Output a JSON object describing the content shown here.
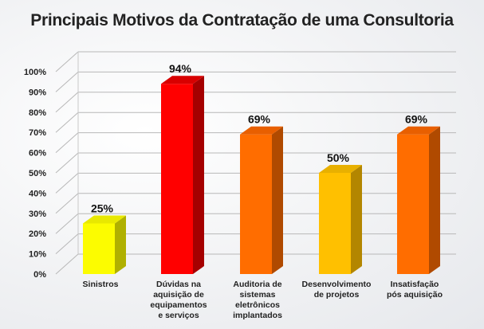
{
  "chart_data": {
    "type": "bar",
    "title": "Principais Motivos da Contratação de uma Consultoria",
    "categories": [
      [
        "Sinistros"
      ],
      [
        "Dúvidas na",
        "aquisição de",
        "equipamentos",
        "e serviços"
      ],
      [
        "Auditoria de",
        "sistemas",
        "eletrônicos",
        "implantados"
      ],
      [
        "Desenvolvimento",
        "de projetos"
      ],
      [
        "Insatisfação",
        "pós aquisição"
      ]
    ],
    "values": [
      25,
      94,
      69,
      50,
      69
    ],
    "data_labels": [
      "25%",
      "94%",
      "69%",
      "50%",
      "69%"
    ],
    "colors": [
      "#fcfc00",
      "#ff0000",
      "#ff6d00",
      "#ffc000",
      "#ff6d00"
    ],
    "side_colors": [
      "#b0b000",
      "#a50000",
      "#b04a00",
      "#b38600",
      "#b04a00"
    ],
    "top_colors": [
      "#e8e800",
      "#d80000",
      "#e85f00",
      "#e8b000",
      "#e85f00"
    ],
    "yticks": [
      "0%",
      "10%",
      "20%",
      "30%",
      "40%",
      "50%",
      "60%",
      "70%",
      "80%",
      "90%",
      "100%"
    ],
    "ylim": [
      0,
      100
    ],
    "grid": true,
    "legend": "none"
  }
}
